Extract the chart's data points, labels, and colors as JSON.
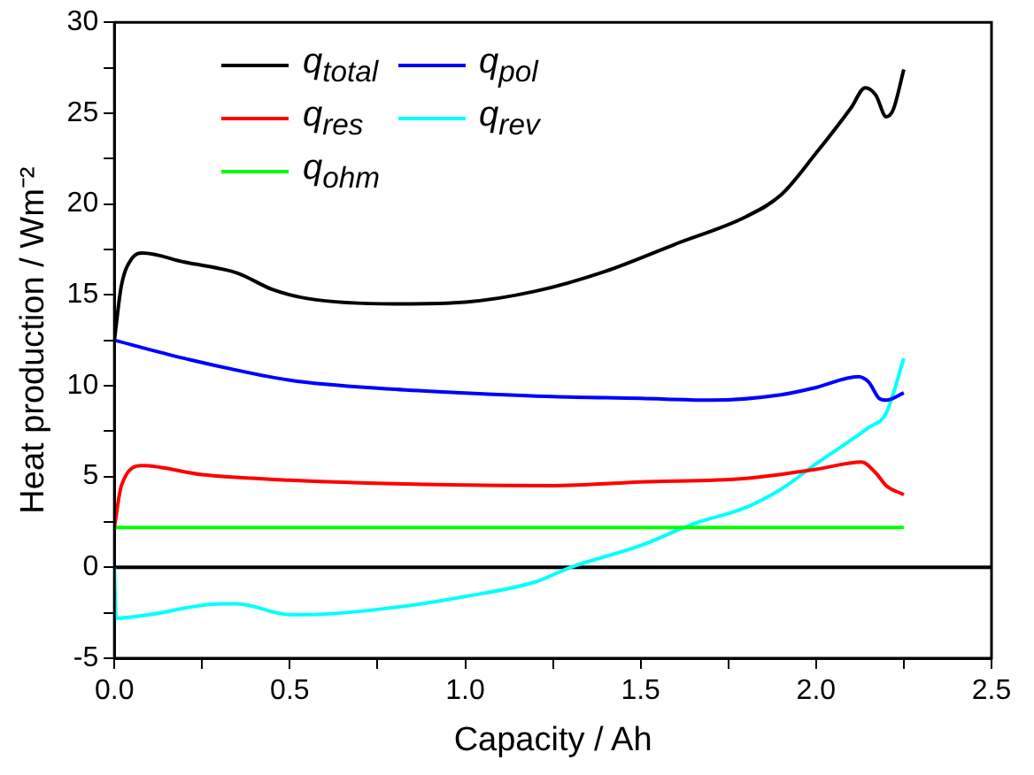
{
  "chart_data": {
    "type": "line",
    "xlabel": "Capacity / Ah",
    "ylabel": "Heat production / Wm⁻²",
    "xlim": [
      0,
      2.5
    ],
    "ylim": [
      -5,
      30
    ],
    "xticks": [
      {
        "value": 0,
        "label": "0.0"
      },
      {
        "value": 0.25,
        "label": null
      },
      {
        "value": 0.5,
        "label": "0.5"
      },
      {
        "value": 0.75,
        "label": null
      },
      {
        "value": 1,
        "label": "1.0"
      },
      {
        "value": 1.25,
        "label": null
      },
      {
        "value": 1.5,
        "label": "1.5"
      },
      {
        "value": 1.75,
        "label": null
      },
      {
        "value": 2,
        "label": "2.0"
      },
      {
        "value": 2.25,
        "label": null
      },
      {
        "value": 2.5,
        "label": "2.5"
      }
    ],
    "yticks": [
      -5,
      {
        "value": -2.5,
        "label": null
      },
      0,
      {
        "value": 2.5,
        "label": null
      },
      5,
      {
        "value": 7.5,
        "label": null
      },
      10,
      {
        "value": 12.5,
        "label": null
      },
      15,
      {
        "value": 17.5,
        "label": null
      },
      20,
      {
        "value": 22.5,
        "label": null
      },
      25,
      {
        "value": 27.5,
        "label": null
      },
      30
    ],
    "grid": false,
    "legend": "top left",
    "marker": "none",
    "line_style": "solid",
    "ref_lines": [
      {
        "axis": "y",
        "value": 0,
        "color": "#000000"
      }
    ],
    "series": [
      {
        "name": "q$_{total}$",
        "color": "#000000",
        "x": [
          0,
          0.02,
          0.05,
          0.08,
          0.2,
          0.35,
          0.45,
          0.55,
          0.8,
          1.0,
          1.2,
          1.4,
          1.6,
          1.8,
          1.9,
          2.0,
          2.1,
          2.14,
          2.17,
          2.2,
          2.22,
          2.25
        ],
        "values": [
          12.5,
          15.5,
          17,
          17.3,
          16.8,
          16.2,
          15.3,
          14.8,
          14.5,
          14.6,
          15.2,
          16.3,
          17.8,
          19.3,
          20.5,
          22.8,
          25.3,
          26.4,
          26,
          24.8,
          25.2,
          27.4
        ]
      },
      {
        "name": "q$_{res}$",
        "color": "#ff0000",
        "x": [
          0,
          0.02,
          0.08,
          0.25,
          0.5,
          0.8,
          1.25,
          1.5,
          1.8,
          2.0,
          2.13,
          2.17,
          2.2,
          2.25
        ],
        "values": [
          2.2,
          4.5,
          5.6,
          5.1,
          4.8,
          4.6,
          4.5,
          4.7,
          4.9,
          5.4,
          5.8,
          5.2,
          4.5,
          4.0
        ]
      },
      {
        "name": "q$_{ohm}$",
        "color": "#00ff00",
        "x": [
          0,
          2.25
        ],
        "values": [
          2.2,
          2.2
        ]
      },
      {
        "name": "q$_{pol}$",
        "color": "#0000ff",
        "x": [
          0,
          0.2,
          0.5,
          0.8,
          1.0,
          1.25,
          1.5,
          1.7,
          1.9,
          2.0,
          2.12,
          2.15,
          2.18,
          2.2,
          2.25
        ],
        "values": [
          12.5,
          11.5,
          10.3,
          9.8,
          9.6,
          9.4,
          9.3,
          9.2,
          9.5,
          9.9,
          10.5,
          10.2,
          9.3,
          9.2,
          9.6
        ]
      },
      {
        "name": "q$_{rev}$",
        "color": "#00ffff",
        "x": [
          0,
          0.005,
          0.1,
          0.3,
          0.35,
          0.5,
          0.55,
          0.8,
          1.0,
          1.2,
          1.3,
          1.5,
          1.65,
          1.8,
          1.9,
          2.0,
          2.15,
          2.2,
          2.25
        ],
        "values": [
          0,
          -2.8,
          -2.6,
          -2.0,
          -2.0,
          -2.6,
          -2.6,
          -2.2,
          -1.6,
          -0.8,
          0,
          1.2,
          2.4,
          3.3,
          4.3,
          5.7,
          7.7,
          8.5,
          11.5
        ]
      }
    ]
  }
}
